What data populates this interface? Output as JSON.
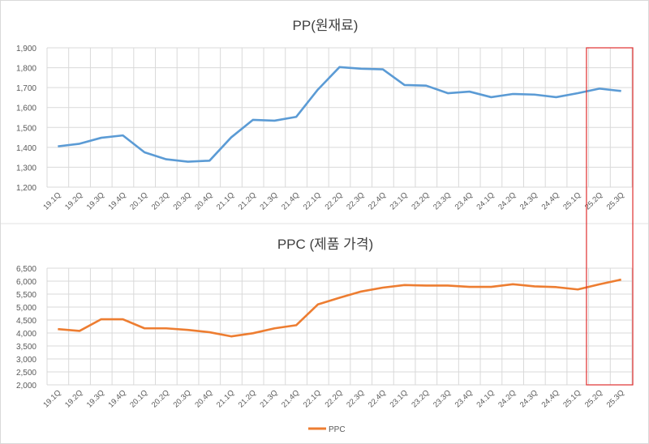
{
  "chart_data": [
    {
      "type": "line",
      "title": "PP(원재료)",
      "categories": [
        "19.1Q",
        "19.2Q",
        "19.3Q",
        "19.4Q",
        "20.1Q",
        "20.2Q",
        "20.3Q",
        "20.4Q",
        "21.1Q",
        "21.2Q",
        "21.3Q",
        "21.4Q",
        "22.1Q",
        "22.2Q",
        "22.3Q",
        "22.4Q",
        "23.1Q",
        "23.2Q",
        "23.3Q",
        "23.4Q",
        "24.1Q",
        "24.2Q",
        "24.3Q",
        "24.4Q",
        "25.1Q",
        "25.2Q",
        "25.3Q"
      ],
      "series": [
        {
          "values": [
            1405,
            1418,
            1448,
            1460,
            1375,
            1340,
            1328,
            1333,
            1450,
            1538,
            1534,
            1553,
            1690,
            1803,
            1795,
            1792,
            1713,
            1710,
            1672,
            1680,
            1652,
            1668,
            1665,
            1652,
            1672,
            1695,
            1683
          ],
          "color": "#5b9bd5"
        }
      ],
      "ylim": [
        1200,
        1900
      ],
      "yticks": [
        "1,200",
        "1,300",
        "1,400",
        "1,500",
        "1,600",
        "1,700",
        "1,800",
        "1,900"
      ],
      "grid": true
    },
    {
      "type": "line",
      "title": "PPC (제품 가격)",
      "categories": [
        "19.1Q",
        "19.2Q",
        "19.3Q",
        "19.4Q",
        "20.1Q",
        "20.2Q",
        "20.3Q",
        "20.4Q",
        "21.1Q",
        "21.2Q",
        "21.3Q",
        "21.4Q",
        "22.1Q",
        "22.2Q",
        "22.3Q",
        "22.4Q",
        "23.1Q",
        "23.2Q",
        "23.3Q",
        "23.4Q",
        "24.1Q",
        "24.2Q",
        "24.3Q",
        "24.4Q",
        "25.1Q",
        "25.2Q",
        "25.3Q"
      ],
      "series": [
        {
          "name": "PPC",
          "values": [
            4150,
            4080,
            4530,
            4530,
            4180,
            4180,
            4120,
            4030,
            3870,
            3990,
            4180,
            4300,
            5100,
            5360,
            5600,
            5750,
            5850,
            5830,
            5830,
            5780,
            5780,
            5880,
            5800,
            5770,
            5680,
            5880,
            6060
          ],
          "color": "#ed7d31"
        }
      ],
      "ylim": [
        2000,
        6500
      ],
      "yticks": [
        "2,000",
        "2,500",
        "3,000",
        "3,500",
        "4,000",
        "4,500",
        "5,000",
        "5,500",
        "6,000",
        "6,500"
      ],
      "grid": true,
      "legend": "bottom"
    }
  ],
  "highlight": {
    "categories": [
      "25.2Q",
      "25.3Q"
    ],
    "color": "#e03030"
  }
}
